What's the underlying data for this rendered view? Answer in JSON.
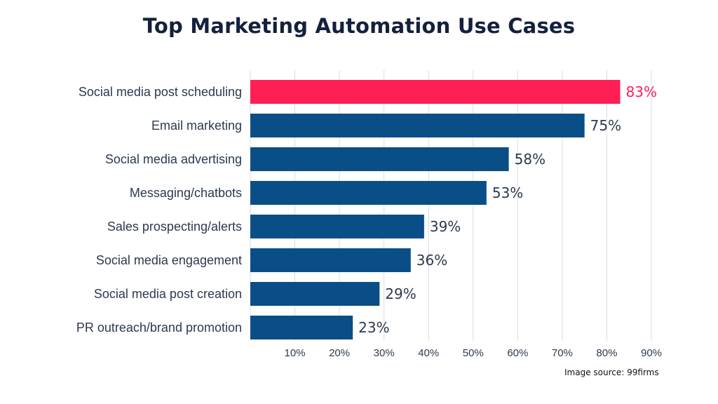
{
  "chart_data": {
    "type": "bar",
    "orientation": "horizontal",
    "title": "Top Marketing Automation Use Cases",
    "categories": [
      "Social media post scheduling",
      "Email marketing",
      "Social media advertising",
      "Messaging/chatbots",
      "Sales prospecting/alerts",
      "Social media engagement",
      "Social media post creation",
      "PR outreach/brand promotion"
    ],
    "values": [
      83,
      75,
      58,
      53,
      39,
      36,
      29,
      23
    ],
    "value_labels": [
      "83%",
      "75%",
      "58%",
      "53%",
      "39%",
      "36%",
      "29%",
      "23%"
    ],
    "xlim": [
      0,
      90
    ],
    "x_ticks": [
      10,
      20,
      30,
      40,
      50,
      60,
      70,
      80,
      90
    ],
    "x_tick_labels": [
      "10%",
      "20%",
      "30%",
      "40%",
      "50%",
      "60%",
      "70%",
      "80%",
      "90%"
    ],
    "grid": "vertical",
    "highlight_index": 0,
    "colors": {
      "bar": "#0a4e87",
      "highlight": "#ff1f55",
      "value_label": "#2b3a4e"
    }
  },
  "footer": {
    "source": "Image source: 99firms"
  }
}
